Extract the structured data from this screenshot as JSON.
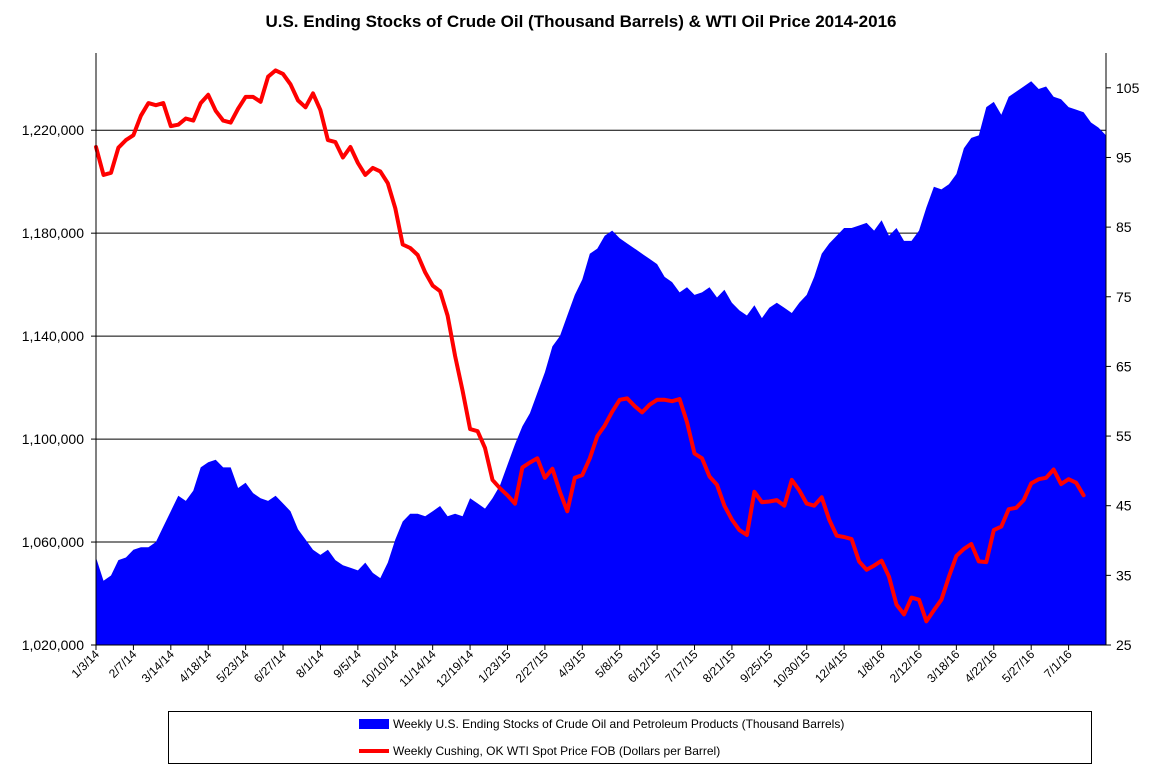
{
  "chart_data": {
    "type": "area",
    "title": "U.S. Ending Stocks of Crude Oil (Thousand Barrels) & WTI Oil Price 2014-2016",
    "x_labels": [
      "1/3/14",
      "2/7/14",
      "3/14/14",
      "4/18/14",
      "5/23/14",
      "6/27/14",
      "8/1/14",
      "9/5/14",
      "10/10/14",
      "11/14/14",
      "12/19/14",
      "1/23/15",
      "2/27/15",
      "4/3/15",
      "5/8/15",
      "6/12/15",
      "7/17/15",
      "8/21/15",
      "9/25/15",
      "10/30/15",
      "12/4/15",
      "1/8/16",
      "2/12/16",
      "3/18/16",
      "4/22/16",
      "5/27/16",
      "7/1/16"
    ],
    "y_left": {
      "ylim": [
        1020000,
        1250000
      ],
      "ticks": [
        "1,020,000",
        "1,060,000",
        "1,100,000",
        "1,140,000",
        "1,180,000",
        "1,220,000"
      ]
    },
    "y_right": {
      "ylim": [
        25,
        110
      ],
      "ticks": [
        "25",
        "35",
        "45",
        "55",
        "65",
        "75",
        "85",
        "95",
        "105"
      ]
    },
    "grid": "horizontal gridlines at left-axis ticks",
    "legend_position": "bottom",
    "series": [
      {
        "name": "Weekly U.S. Ending Stocks of Crude Oil and Petroleum Products  (Thousand Barrels)",
        "type": "area",
        "axis": "left",
        "color": "#0000ff",
        "values": [
          1054000,
          1045000,
          1047000,
          1053000,
          1054000,
          1057000,
          1058000,
          1058000,
          1060000,
          1066000,
          1072000,
          1078000,
          1076000,
          1080000,
          1089000,
          1091000,
          1092000,
          1089000,
          1089000,
          1081000,
          1083000,
          1079000,
          1077000,
          1076000,
          1078000,
          1075000,
          1072000,
          1065000,
          1061000,
          1057000,
          1055000,
          1057000,
          1053000,
          1051000,
          1050000,
          1049000,
          1052000,
          1048000,
          1046000,
          1052000,
          1061000,
          1068000,
          1071000,
          1071000,
          1070000,
          1072000,
          1074000,
          1070000,
          1071000,
          1070000,
          1077000,
          1075000,
          1073000,
          1077000,
          1082000,
          1090000,
          1098000,
          1105000,
          1110000,
          1118000,
          1126000,
          1136000,
          1140000,
          1148000,
          1156000,
          1162000,
          1172000,
          1174000,
          1179000,
          1181000,
          1178000,
          1176000,
          1174000,
          1172000,
          1170000,
          1168000,
          1163000,
          1161000,
          1157000,
          1159000,
          1156000,
          1157000,
          1159000,
          1155000,
          1158000,
          1153000,
          1150000,
          1148000,
          1152000,
          1147000,
          1151000,
          1153000,
          1151000,
          1149000,
          1153000,
          1156000,
          1163000,
          1172000,
          1176000,
          1179000,
          1182000,
          1182000,
          1183000,
          1184000,
          1181000,
          1185000,
          1179000,
          1182000,
          1177000,
          1177000,
          1181000,
          1190000,
          1198000,
          1197000,
          1199000,
          1203000,
          1213000,
          1217000,
          1218000,
          1229000,
          1231000,
          1226000,
          1233000,
          1235000,
          1237000,
          1239000,
          1236000,
          1237000,
          1233000,
          1232000,
          1229000,
          1228000,
          1227000,
          1223000,
          1221000,
          1218000
        ]
      },
      {
        "name": "Weekly Cushing, OK WTI Spot Price FOB  (Dollars per Barrel)",
        "type": "line",
        "axis": "right",
        "color": "#ff0000",
        "values": [
          96.5,
          92.5,
          92.8,
          96.4,
          97.5,
          98.2,
          101.0,
          102.8,
          102.5,
          102.8,
          99.5,
          99.7,
          100.6,
          100.3,
          102.8,
          104.0,
          101.7,
          100.3,
          100.0,
          102.0,
          103.7,
          103.7,
          103.0,
          106.6,
          107.5,
          107.0,
          105.5,
          103.2,
          102.2,
          104.2,
          101.8,
          97.5,
          97.2,
          95.0,
          96.5,
          94.2,
          92.5,
          93.5,
          93.0,
          91.3,
          87.7,
          82.5,
          82.0,
          81.0,
          78.5,
          76.6,
          75.8,
          72.3,
          66.5,
          61.5,
          56.0,
          55.7,
          53.3,
          48.7,
          47.5,
          46.5,
          45.3,
          50.5,
          51.2,
          51.8,
          49.0,
          50.3,
          47.0,
          44.2,
          49.0,
          49.4,
          51.8,
          55.0,
          56.5,
          58.5,
          60.2,
          60.4,
          59.3,
          58.4,
          59.5,
          60.2,
          60.2,
          60.0,
          60.3,
          57.0,
          52.5,
          51.8,
          49.2,
          48.0,
          45.0,
          43.0,
          41.5,
          40.8,
          47.0,
          45.5,
          45.6,
          45.8,
          45.0,
          48.7,
          47.2,
          45.3,
          45.0,
          46.2,
          43.0,
          40.7,
          40.5,
          40.2,
          37.0,
          35.8,
          36.4,
          37.1,
          34.8,
          30.8,
          29.4,
          31.8,
          31.5,
          28.4,
          30.0,
          31.5,
          34.8,
          37.8,
          38.8,
          39.5,
          37.0,
          36.9,
          41.5,
          42.0,
          44.5,
          44.7,
          45.8,
          48.2,
          48.8,
          49.0,
          50.2,
          48.1,
          48.8,
          48.3,
          46.5
        ]
      }
    ]
  }
}
